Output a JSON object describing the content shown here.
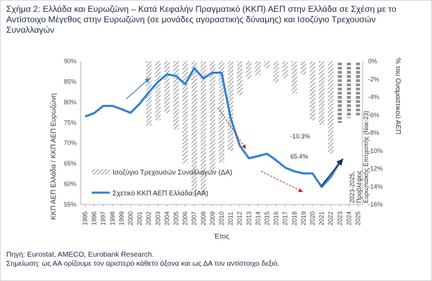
{
  "title": "Σχήμα 2: Ελλάδα και Ευρωζώνη – Κατά Κεφαλήν Πραγματικό (ΚΚΠ) ΑΕΠ στην Ελλάδα σε Σχέση με το Αντίστοιχο Μέγεθος στην Ευρωζώνη (σε μονάδες αγοραστικής δύναμης) και Ισοζύγιο Τρεχουσών Συναλλαγών",
  "source": {
    "line1": "Πηγή: Eurostat, AMECO, Eurobank Research.",
    "line2": "Σημείωση: ως ΑΑ ορίζουμε τον αριστερό κάθετο άξονα και ως ΔΑ τον αντίστοιχο δεξιό."
  },
  "chart_data": {
    "type": "bar+line",
    "categories": [
      "1995",
      "1996",
      "1997",
      "1998",
      "1999",
      "2000",
      "2001",
      "2002",
      "2003",
      "2004",
      "2005",
      "2006",
      "2007",
      "2008",
      "2009",
      "2010",
      "2011",
      "2012",
      "2013",
      "2014",
      "2015",
      "2016",
      "2017",
      "2018",
      "2019",
      "2020",
      "2021",
      "2022",
      "2023",
      "2024",
      "2025"
    ],
    "series": [
      {
        "name": "Ισοζύγιο Τρεχουσών Συναλλαγών (ΔΑ)",
        "axis": "right",
        "style": "hatched-bar",
        "values": [
          null,
          null,
          null,
          null,
          null,
          null,
          null,
          -7.2,
          -6.6,
          -5.8,
          -7.6,
          -11.4,
          -15.1,
          -15.0,
          -12.3,
          -11.3,
          -10.0,
          -3.8,
          -2.0,
          -1.6,
          -0.8,
          -2.4,
          -1.9,
          -3.6,
          -1.5,
          -6.6,
          -7.1,
          -10.3,
          null,
          null,
          null
        ]
      },
      {
        "name": "Σχετικό ΚΚΠ ΑΕΠ Ελλάδα (ΑΑ)",
        "axis": "left",
        "style": "line",
        "values": [
          76.5,
          77.3,
          79.1,
          79.1,
          78.3,
          77.4,
          79.6,
          82.4,
          84.9,
          86.8,
          86.4,
          84.4,
          88.3,
          85.8,
          87.2,
          87.2,
          76.1,
          69.4,
          66.3,
          66.8,
          67.4,
          65.8,
          64.0,
          63.1,
          62.6,
          62.6,
          59.3,
          61.7,
          65.4,
          null,
          null
        ]
      },
      {
        "name": "Προβλέψεις Ευρωπαϊκής Επιτροπής",
        "axis": "right",
        "style": "dashed-bar",
        "values": [
          null,
          null,
          null,
          null,
          null,
          null,
          null,
          null,
          null,
          null,
          null,
          null,
          null,
          null,
          null,
          null,
          null,
          null,
          null,
          null,
          null,
          null,
          null,
          null,
          null,
          null,
          null,
          null,
          -6.9,
          -6.3,
          -6.1
        ]
      }
    ],
    "left_axis": {
      "label": "ΚΚΠ ΑΕΠ Ελλάδα / ΚΚΠ ΑΕΠ Ευρωζώνη",
      "ylim": [
        55,
        90
      ],
      "ticks": [
        "90%",
        "85%",
        "80%",
        "75%",
        "70%",
        "65%",
        "60%",
        "55%"
      ]
    },
    "right_axis": {
      "label": "% του Ονομαστικού ΑΕΠ",
      "ylim": [
        -16,
        0
      ],
      "ticks": [
        "0%",
        "-2%",
        "-4%",
        "-6%",
        "-8%",
        "-10%",
        "-12%",
        "-14%",
        "-16%"
      ]
    },
    "xlabel": "Έτος",
    "annotations": {
      "cab_2022": "-10.3%",
      "gdp_2023": "65.4%",
      "forecast_note": "2023-2025, Προβλέψεις Ευρωπαϊκής Επιτροπής (Νοε-23)"
    },
    "legend_placement": "center-left"
  }
}
